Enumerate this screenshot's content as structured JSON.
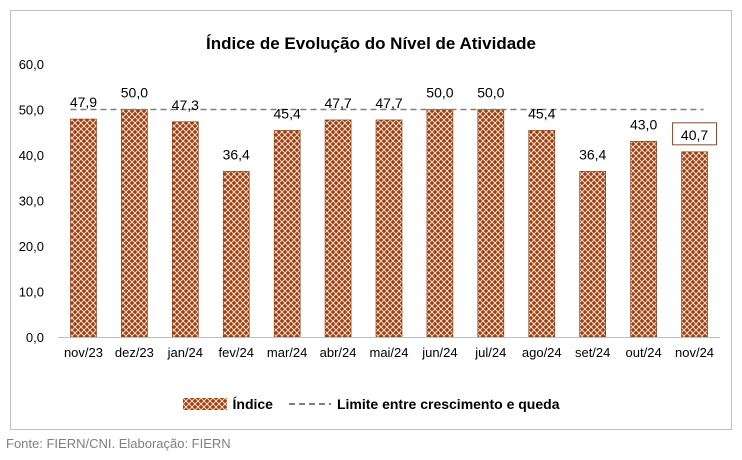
{
  "chart_data": {
    "type": "bar",
    "title": "Índice de Evolução do Nível de Atividade",
    "categories": [
      "nov/23",
      "dez/23",
      "jan/24",
      "fev/24",
      "mar/24",
      "abr/24",
      "mai/24",
      "jun/24",
      "jul/24",
      "ago/24",
      "set/24",
      "out/24",
      "nov/24"
    ],
    "series": [
      {
        "name": "Índice",
        "values": [
          47.9,
          50.0,
          47.3,
          36.4,
          45.4,
          47.7,
          47.7,
          50.0,
          50.0,
          45.4,
          36.4,
          43.0,
          40.7
        ],
        "labels": [
          "47,9",
          "50,0",
          "47,3",
          "36,4",
          "45,4",
          "47,7",
          "47,7",
          "50,0",
          "50,0",
          "45,4",
          "36,4",
          "43,0",
          "40,7"
        ]
      }
    ],
    "reference_line": {
      "name": "Limite entre crescimento e queda",
      "value": 50
    },
    "ylim": [
      0,
      60
    ],
    "yticks": [
      0,
      10,
      20,
      30,
      40,
      50,
      60
    ],
    "ytick_labels": [
      "0,0",
      "10,0",
      "20,0",
      "30,0",
      "40,0",
      "50,0",
      "60,0"
    ],
    "highlighted_label_index": 12,
    "grid": false,
    "legend_position": "bottom",
    "colors": {
      "bar": "#9c3d0e",
      "hatch": "#f2d9c8",
      "reference": "#7f7f7f",
      "highlight_border": "#8b4a2b"
    }
  },
  "legend": {
    "bar_label": "Índice",
    "line_label": "Limite entre crescimento e queda"
  },
  "source": "Fonte: FIERN/CNI. Elaboração: FIERN"
}
